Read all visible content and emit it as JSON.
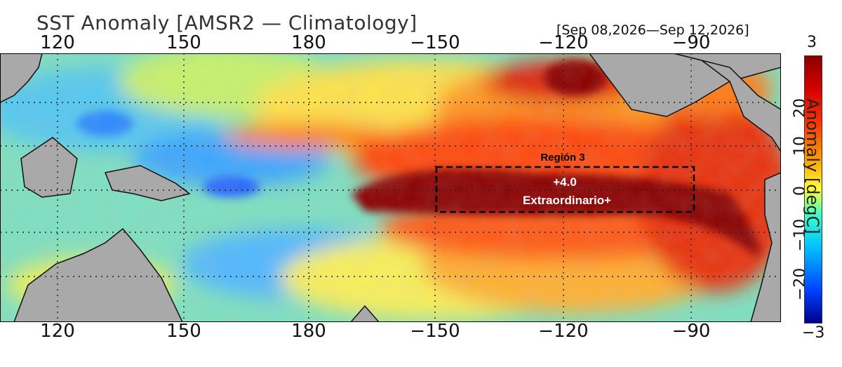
{
  "title": "SST Anomaly [AMSR2 — Climatology]",
  "date_range": "[Sep 08,2026—Sep 12,2026]",
  "lon_ticks_top": [
    "120",
    "150",
    "180",
    "−150",
    "−120",
    "−90"
  ],
  "lon_ticks_bottom": [
    "120",
    "150",
    "180",
    "−150",
    "−120",
    "−90"
  ],
  "lat_ticks": [
    "20",
    "10",
    "0",
    "−10",
    "−20"
  ],
  "colorbar": {
    "max_label": "3",
    "min_label": "−3",
    "title": "Anomaly [degC]",
    "range": [
      -3,
      3
    ]
  },
  "region": {
    "name": "Región 3",
    "value": "+4.0",
    "category": "Extraordinario+"
  },
  "colors": {
    "land": "#a9a9a9",
    "extreme": "#8b0000",
    "warm": "#ff6a00",
    "neutral": "#ffff40",
    "cool": "#33ddff"
  }
}
